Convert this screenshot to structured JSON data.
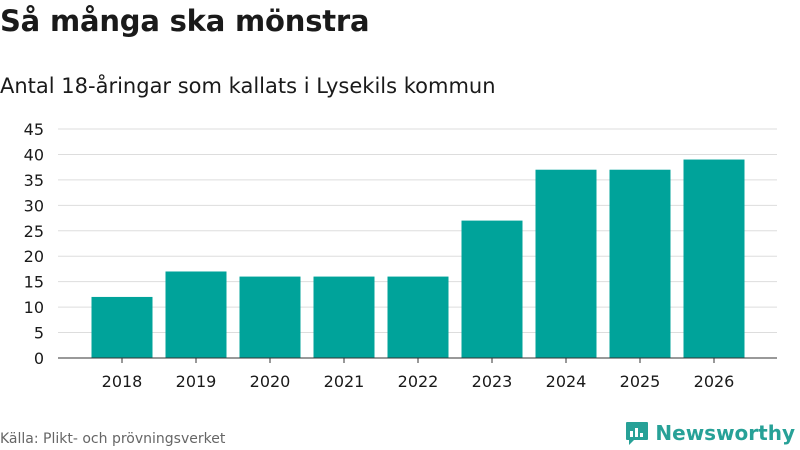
{
  "chart_data": {
    "type": "bar",
    "title": "Så många ska mönstra",
    "subtitle": "Antal 18-åringar som kallats i Lysekils kommun",
    "categories": [
      "2018",
      "2019",
      "2020",
      "2021",
      "2022",
      "2023",
      "2024",
      "2025",
      "2026"
    ],
    "values": [
      12,
      17,
      16,
      16,
      16,
      27,
      37,
      37,
      39
    ],
    "ylim": [
      0,
      45
    ],
    "yticks": [
      0,
      5,
      10,
      15,
      20,
      25,
      30,
      35,
      40,
      45
    ],
    "xlabel": "",
    "ylabel": "",
    "grid": true,
    "bar_color": "#00a39a",
    "source": "Källa: Plikt- och prövningsverket",
    "brand": "Newsworthy"
  },
  "colors": {
    "bar": "#00a39a",
    "brand": "#27a197",
    "grid": "#dddddd",
    "axis": "#333333"
  }
}
